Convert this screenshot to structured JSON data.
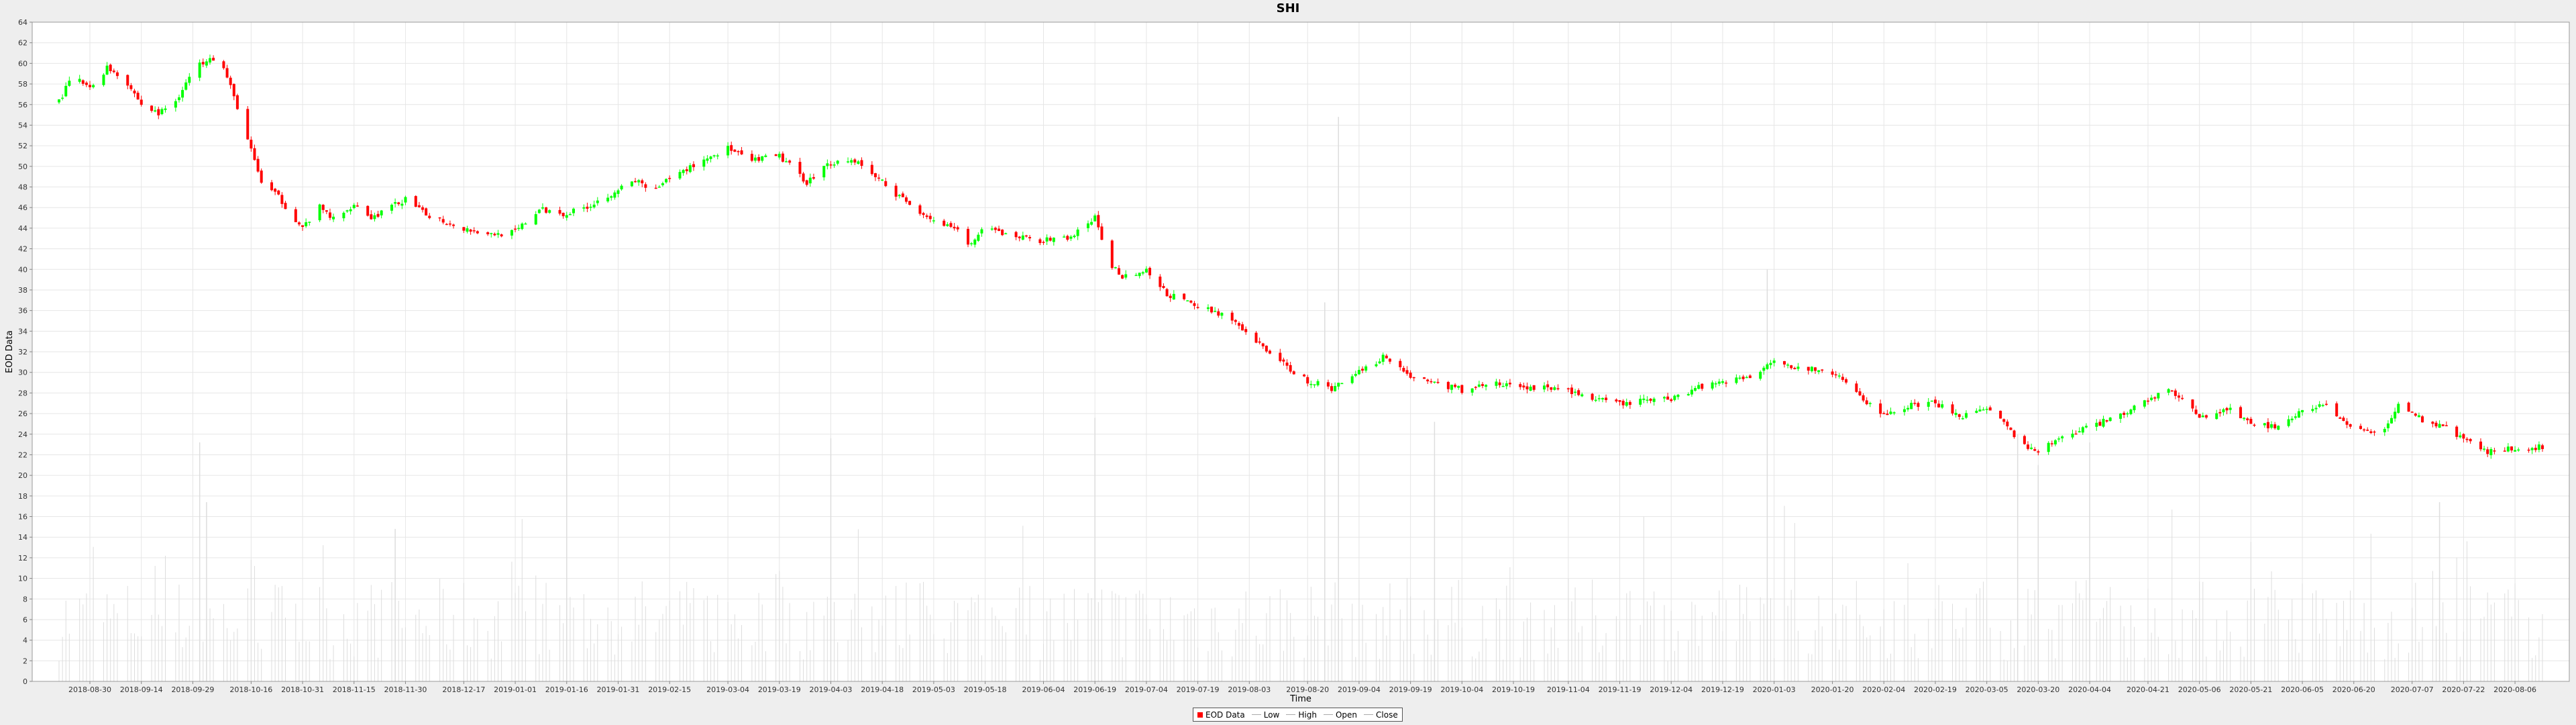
{
  "chart_data": {
    "type": "candlestick",
    "title": "SHI",
    "xlabel": "Time",
    "ylabel": "EOD Data",
    "ylim": [
      0,
      64
    ],
    "y_ticks": [
      0,
      2,
      4,
      6,
      8,
      10,
      12,
      14,
      16,
      18,
      20,
      22,
      24,
      26,
      28,
      30,
      32,
      34,
      36,
      38,
      40,
      42,
      44,
      46,
      48,
      50,
      52,
      54,
      56,
      58,
      60,
      62,
      64
    ],
    "x_range": [
      "2018-08-21",
      "2020-08-14"
    ],
    "x_ticks": [
      "2018-08-30",
      "2018-09-14",
      "2018-09-29",
      "2018-10-16",
      "2018-10-31",
      "2018-11-15",
      "2018-11-30",
      "2018-12-17",
      "2019-01-01",
      "2019-01-16",
      "2019-01-31",
      "2019-02-15",
      "2019-03-04",
      "2019-03-19",
      "2019-04-03",
      "2019-04-18",
      "2019-05-03",
      "2019-05-18",
      "2019-06-04",
      "2019-06-19",
      "2019-07-04",
      "2019-07-19",
      "2019-08-03",
      "2019-08-20",
      "2019-09-04",
      "2019-09-19",
      "2019-10-04",
      "2019-10-19",
      "2019-11-04",
      "2019-11-19",
      "2019-12-04",
      "2019-12-19",
      "2020-01-03",
      "2020-01-20",
      "2020-02-04",
      "2020-02-19",
      "2020-03-05",
      "2020-03-20",
      "2020-04-04",
      "2020-04-21",
      "2020-05-06",
      "2020-05-21",
      "2020-06-05",
      "2020-06-20",
      "2020-07-07",
      "2020-07-22",
      "2020-08-06"
    ],
    "legend": [
      "EOD Data",
      "Low",
      "High",
      "Open",
      "Close"
    ],
    "colors": {
      "up": "#00ff00",
      "down": "#ff0000",
      "volume": "#dddddd",
      "grid": "#e6e6e6"
    },
    "series_close": [
      [
        "2018-08-21",
        56.3
      ],
      [
        "2018-08-25",
        58.8
      ],
      [
        "2018-08-30",
        57.5
      ],
      [
        "2018-09-04",
        59.6
      ],
      [
        "2018-09-09",
        58.6
      ],
      [
        "2018-09-14",
        56.0
      ],
      [
        "2018-09-19",
        55.1
      ],
      [
        "2018-09-24",
        56.4
      ],
      [
        "2018-09-29",
        59.2
      ],
      [
        "2018-10-04",
        60.8
      ],
      [
        "2018-10-08",
        59.5
      ],
      [
        "2018-10-12",
        55.8
      ],
      [
        "2018-10-16",
        51.5
      ],
      [
        "2018-10-19",
        48.5
      ],
      [
        "2018-10-24",
        47.0
      ],
      [
        "2018-10-31",
        44.0
      ],
      [
        "2018-11-05",
        46.0
      ],
      [
        "2018-11-10",
        44.6
      ],
      [
        "2018-11-15",
        46.5
      ],
      [
        "2018-11-20",
        45.0
      ],
      [
        "2018-11-30",
        46.8
      ],
      [
        "2018-12-05",
        45.5
      ],
      [
        "2018-12-12",
        44.6
      ],
      [
        "2018-12-17",
        44.0
      ],
      [
        "2018-12-25",
        43.4
      ],
      [
        "2019-01-01",
        43.6
      ],
      [
        "2019-01-08",
        45.8
      ],
      [
        "2019-01-16",
        45.4
      ],
      [
        "2019-01-24",
        46.4
      ],
      [
        "2019-01-31",
        47.8
      ],
      [
        "2019-02-06",
        48.6
      ],
      [
        "2019-02-10",
        47.4
      ],
      [
        "2019-02-15",
        48.8
      ],
      [
        "2019-02-24",
        50.5
      ],
      [
        "2019-03-04",
        51.8
      ],
      [
        "2019-03-10",
        50.5
      ],
      [
        "2019-03-19",
        51.0
      ],
      [
        "2019-03-27",
        48.5
      ],
      [
        "2019-04-03",
        50.4
      ],
      [
        "2019-04-10",
        50.6
      ],
      [
        "2019-04-18",
        48.5
      ],
      [
        "2019-04-25",
        46.5
      ],
      [
        "2019-05-03",
        44.8
      ],
      [
        "2019-05-10",
        43.6
      ],
      [
        "2019-05-14",
        42.4
      ],
      [
        "2019-05-18",
        44.0
      ],
      [
        "2019-05-25",
        43.3
      ],
      [
        "2019-06-04",
        42.8
      ],
      [
        "2019-06-12",
        43.1
      ],
      [
        "2019-06-19",
        45.0
      ],
      [
        "2019-06-23",
        40.6
      ],
      [
        "2019-06-27",
        39.4
      ],
      [
        "2019-07-04",
        39.8
      ],
      [
        "2019-07-10",
        37.6
      ],
      [
        "2019-07-19",
        36.4
      ],
      [
        "2019-07-27",
        35.6
      ],
      [
        "2019-08-03",
        33.4
      ],
      [
        "2019-08-09",
        32.0
      ],
      [
        "2019-08-14",
        30.5
      ],
      [
        "2019-08-20",
        29.2
      ],
      [
        "2019-08-27",
        28.4
      ],
      [
        "2019-09-04",
        30.2
      ],
      [
        "2019-09-12",
        31.6
      ],
      [
        "2019-09-19",
        29.6
      ],
      [
        "2019-09-26",
        29.0
      ],
      [
        "2019-10-04",
        28.3
      ],
      [
        "2019-10-12",
        29.0
      ],
      [
        "2019-10-19",
        28.6
      ],
      [
        "2019-10-27",
        28.5
      ],
      [
        "2019-11-04",
        28.3
      ],
      [
        "2019-11-11",
        27.4
      ],
      [
        "2019-11-19",
        26.9
      ],
      [
        "2019-11-27",
        27.3
      ],
      [
        "2019-12-04",
        27.5
      ],
      [
        "2019-12-12",
        28.6
      ],
      [
        "2019-12-19",
        29.2
      ],
      [
        "2019-12-27",
        29.5
      ],
      [
        "2020-01-03",
        31.4
      ],
      [
        "2020-01-10",
        30.4
      ],
      [
        "2020-01-20",
        30.0
      ],
      [
        "2020-01-27",
        28.0
      ],
      [
        "2020-02-04",
        25.8
      ],
      [
        "2020-02-12",
        26.8
      ],
      [
        "2020-02-19",
        27.0
      ],
      [
        "2020-02-27",
        25.8
      ],
      [
        "2020-03-05",
        26.3
      ],
      [
        "2020-03-10",
        25.0
      ],
      [
        "2020-03-16",
        22.8
      ],
      [
        "2020-03-20",
        22.2
      ],
      [
        "2020-03-27",
        23.8
      ],
      [
        "2020-04-04",
        24.8
      ],
      [
        "2020-04-12",
        25.6
      ],
      [
        "2020-04-21",
        27.4
      ],
      [
        "2020-04-27",
        28.4
      ],
      [
        "2020-05-06",
        25.6
      ],
      [
        "2020-05-14",
        26.5
      ],
      [
        "2020-05-21",
        25.0
      ],
      [
        "2020-05-28",
        24.8
      ],
      [
        "2020-06-05",
        26.3
      ],
      [
        "2020-06-12",
        26.8
      ],
      [
        "2020-06-20",
        24.3
      ],
      [
        "2020-06-28",
        24.1
      ],
      [
        "2020-07-03",
        26.8
      ],
      [
        "2020-07-10",
        25.4
      ],
      [
        "2020-07-17",
        24.6
      ],
      [
        "2020-07-22",
        23.6
      ],
      [
        "2020-07-27",
        22.3
      ],
      [
        "2020-08-06",
        22.6
      ],
      [
        "2020-08-14",
        22.8
      ]
    ],
    "volume_spikes": [
      [
        "2018-10-01",
        23.2
      ],
      [
        "2018-10-03",
        17.4
      ],
      [
        "2018-11-27",
        14.8
      ],
      [
        "2019-01-16",
        27.4
      ],
      [
        "2019-04-03",
        23.6
      ],
      [
        "2019-06-19",
        25.6
      ],
      [
        "2019-08-25",
        36.8
      ],
      [
        "2019-08-29",
        54.8
      ],
      [
        "2019-09-26",
        25.2
      ],
      [
        "2020-01-01",
        40.0
      ],
      [
        "2020-03-14",
        24.0
      ],
      [
        "2020-03-20",
        21.0
      ],
      [
        "2020-04-04",
        23.2
      ],
      [
        "2020-07-15",
        17.4
      ]
    ]
  }
}
